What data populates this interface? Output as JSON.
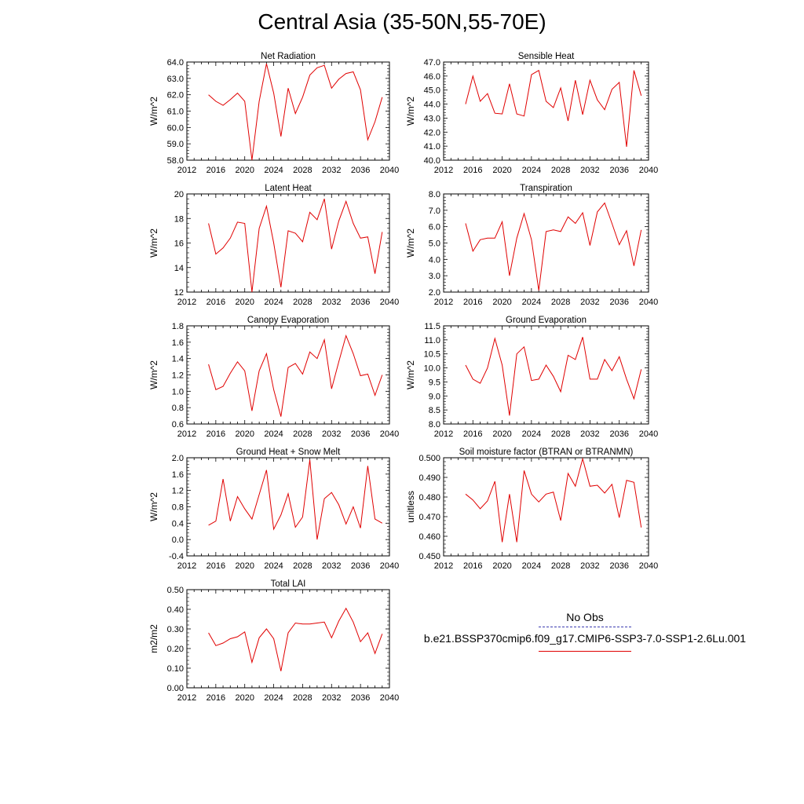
{
  "figure": {
    "title": "Central Asia (35-50N,55-70E)"
  },
  "legend": {
    "obs_label": "No Obs",
    "run_label": "b.e21.BSSP370cmip6.f09_g17.CMIP6-SSP3-7.0-SSP1-2.6Lu.001",
    "run_color": "#e00000",
    "obs_color": "#3c3cb0"
  },
  "line_color": "#e00000",
  "chart_data": [
    {
      "type": "line",
      "title": "Net Radiation",
      "ylabel": "W/m^2",
      "xlim": [
        2012,
        2040
      ],
      "ylim": [
        58.0,
        64.0
      ],
      "xticks": [
        "2012",
        "2016",
        "2020",
        "2024",
        "2028",
        "2032",
        "2036",
        "2040"
      ],
      "yticks": [
        "58.0",
        "59.0",
        "60.0",
        "61.0",
        "62.0",
        "63.0",
        "64.0"
      ],
      "x": [
        2015,
        2016,
        2017,
        2018,
        2019,
        2020,
        2021,
        2022,
        2023,
        2024,
        2025,
        2026,
        2027,
        2028,
        2029,
        2030,
        2031,
        2032,
        2033,
        2034,
        2035,
        2036,
        2037,
        2038,
        2039
      ],
      "series": [
        {
          "values": [
            62.0,
            61.6,
            61.35,
            61.7,
            62.1,
            61.6,
            58.0,
            61.6,
            63.9,
            62.1,
            59.45,
            62.4,
            60.85,
            61.85,
            63.2,
            63.65,
            63.8,
            62.4,
            62.95,
            63.3,
            63.4,
            62.3,
            59.25,
            60.35,
            61.85
          ]
        }
      ]
    },
    {
      "type": "line",
      "title": "Sensible Heat",
      "ylabel": "W/m^2",
      "xlim": [
        2012,
        2040
      ],
      "ylim": [
        40.0,
        47.0
      ],
      "xticks": [
        "2012",
        "2016",
        "2020",
        "2024",
        "2028",
        "2032",
        "2036",
        "2040"
      ],
      "yticks": [
        "40.0",
        "41.0",
        "42.0",
        "43.0",
        "44.0",
        "45.0",
        "46.0",
        "47.0"
      ],
      "x": [
        2015,
        2016,
        2017,
        2018,
        2019,
        2020,
        2021,
        2022,
        2023,
        2024,
        2025,
        2026,
        2027,
        2028,
        2029,
        2030,
        2031,
        2032,
        2033,
        2034,
        2035,
        2036,
        2037,
        2038,
        2039
      ],
      "series": [
        {
          "values": [
            44.0,
            46.0,
            44.2,
            44.75,
            43.35,
            43.3,
            45.45,
            43.3,
            43.15,
            46.1,
            46.4,
            44.2,
            43.75,
            45.15,
            42.8,
            45.7,
            43.25,
            45.7,
            44.3,
            43.6,
            45.05,
            45.55,
            40.95,
            46.4,
            44.6
          ]
        }
      ]
    },
    {
      "type": "line",
      "title": "Latent Heat",
      "ylabel": "W/m^2",
      "xlim": [
        2012,
        2040
      ],
      "ylim": [
        12,
        20
      ],
      "xticks": [
        "2012",
        "2016",
        "2020",
        "2024",
        "2028",
        "2032",
        "2036",
        "2040"
      ],
      "yticks": [
        "12",
        "14",
        "16",
        "18",
        "20"
      ],
      "x": [
        2015,
        2016,
        2017,
        2018,
        2019,
        2020,
        2021,
        2022,
        2023,
        2024,
        2025,
        2026,
        2027,
        2028,
        2029,
        2030,
        2031,
        2032,
        2033,
        2034,
        2035,
        2036,
        2037,
        2038,
        2039
      ],
      "series": [
        {
          "values": [
            17.6,
            15.1,
            15.6,
            16.4,
            17.7,
            17.6,
            12.0,
            17.2,
            19.0,
            16.0,
            12.4,
            17.0,
            16.8,
            16.1,
            18.5,
            17.9,
            19.6,
            15.5,
            17.8,
            19.4,
            17.6,
            16.4,
            16.5,
            13.5,
            16.9
          ]
        }
      ]
    },
    {
      "type": "line",
      "title": "Transpiration",
      "ylabel": "W/m^2",
      "xlim": [
        2012,
        2040
      ],
      "ylim": [
        2.0,
        8.0
      ],
      "xticks": [
        "2012",
        "2016",
        "2020",
        "2024",
        "2028",
        "2032",
        "2036",
        "2040"
      ],
      "yticks": [
        "2.0",
        "3.0",
        "4.0",
        "5.0",
        "6.0",
        "7.0",
        "8.0"
      ],
      "x": [
        2015,
        2016,
        2017,
        2018,
        2019,
        2020,
        2021,
        2022,
        2023,
        2024,
        2025,
        2026,
        2027,
        2028,
        2029,
        2030,
        2031,
        2032,
        2033,
        2034,
        2035,
        2036,
        2037,
        2038,
        2039
      ],
      "series": [
        {
          "values": [
            6.2,
            4.5,
            5.2,
            5.3,
            5.3,
            6.3,
            3.0,
            5.3,
            6.8,
            5.2,
            2.1,
            5.7,
            5.8,
            5.7,
            6.6,
            6.2,
            6.85,
            4.85,
            6.9,
            7.45,
            6.2,
            4.9,
            5.75,
            3.6,
            5.8
          ]
        }
      ]
    },
    {
      "type": "line",
      "title": "Canopy Evaporation",
      "ylabel": "W/m^2",
      "xlim": [
        2012,
        2040
      ],
      "ylim": [
        0.6,
        1.8
      ],
      "xticks": [
        "2012",
        "2016",
        "2020",
        "2024",
        "2028",
        "2032",
        "2036",
        "2040"
      ],
      "yticks": [
        "0.6",
        "0.8",
        "1.0",
        "1.2",
        "1.4",
        "1.6",
        "1.8"
      ],
      "x": [
        2015,
        2016,
        2017,
        2018,
        2019,
        2020,
        2021,
        2022,
        2023,
        2024,
        2025,
        2026,
        2027,
        2028,
        2029,
        2030,
        2031,
        2032,
        2033,
        2034,
        2035,
        2036,
        2037,
        2038,
        2039
      ],
      "series": [
        {
          "values": [
            1.33,
            1.02,
            1.06,
            1.22,
            1.36,
            1.25,
            0.76,
            1.25,
            1.46,
            1.02,
            0.69,
            1.29,
            1.34,
            1.21,
            1.48,
            1.4,
            1.63,
            1.03,
            1.36,
            1.68,
            1.46,
            1.19,
            1.21,
            0.95,
            1.2
          ]
        }
      ]
    },
    {
      "type": "line",
      "title": "Ground Evaporation",
      "ylabel": "W/m^2",
      "xlim": [
        2012,
        2040
      ],
      "ylim": [
        8.0,
        11.5
      ],
      "xticks": [
        "2012",
        "2016",
        "2020",
        "2024",
        "2028",
        "2032",
        "2036",
        "2040"
      ],
      "yticks": [
        "8.0",
        "8.5",
        "9.0",
        "9.5",
        "10.0",
        "10.5",
        "11.0",
        "11.5"
      ],
      "x": [
        2015,
        2016,
        2017,
        2018,
        2019,
        2020,
        2021,
        2022,
        2023,
        2024,
        2025,
        2026,
        2027,
        2028,
        2029,
        2030,
        2031,
        2032,
        2033,
        2034,
        2035,
        2036,
        2037,
        2038,
        2039
      ],
      "series": [
        {
          "values": [
            10.1,
            9.6,
            9.45,
            10.0,
            11.05,
            10.1,
            8.3,
            10.5,
            10.75,
            9.55,
            9.6,
            10.1,
            9.7,
            9.15,
            10.45,
            10.3,
            11.1,
            9.6,
            9.6,
            10.3,
            9.9,
            10.4,
            9.6,
            8.9,
            9.95
          ]
        }
      ]
    },
    {
      "type": "line",
      "title": "Ground Heat + Snow Melt",
      "ylabel": "W/m^2",
      "xlim": [
        2012,
        2040
      ],
      "ylim": [
        -0.4,
        2.0
      ],
      "xticks": [
        "2012",
        "2016",
        "2020",
        "2024",
        "2028",
        "2032",
        "2036",
        "2040"
      ],
      "yticks": [
        "-0.4",
        "0.0",
        "0.4",
        "0.8",
        "1.2",
        "1.6",
        "2.0"
      ],
      "x": [
        2015,
        2016,
        2017,
        2018,
        2019,
        2020,
        2021,
        2022,
        2023,
        2024,
        2025,
        2026,
        2027,
        2028,
        2029,
        2030,
        2031,
        2032,
        2033,
        2034,
        2035,
        2036,
        2037,
        2038,
        2039
      ],
      "series": [
        {
          "values": [
            0.35,
            0.45,
            1.48,
            0.45,
            1.05,
            0.75,
            0.5,
            1.1,
            1.7,
            0.25,
            0.6,
            1.12,
            0.3,
            0.55,
            1.95,
            0.0,
            1.0,
            1.15,
            0.85,
            0.38,
            0.8,
            0.28,
            1.8,
            0.5,
            0.4
          ]
        }
      ]
    },
    {
      "type": "line",
      "title": "Soil moisture factor (BTRAN or BTRANMN)",
      "ylabel": "unitless",
      "xlim": [
        2012,
        2040
      ],
      "ylim": [
        0.45,
        0.5
      ],
      "xticks": [
        "2012",
        "2016",
        "2020",
        "2024",
        "2028",
        "2032",
        "2036",
        "2040"
      ],
      "yticks": [
        "0.450",
        "0.460",
        "0.470",
        "0.480",
        "0.490",
        "0.500"
      ],
      "x": [
        2015,
        2016,
        2017,
        2018,
        2019,
        2020,
        2021,
        2022,
        2023,
        2024,
        2025,
        2026,
        2027,
        2028,
        2029,
        2030,
        2031,
        2032,
        2033,
        2034,
        2035,
        2036,
        2037,
        2038,
        2039
      ],
      "series": [
        {
          "values": [
            0.4815,
            0.4785,
            0.474,
            0.478,
            0.488,
            0.457,
            0.4815,
            0.457,
            0.4935,
            0.4815,
            0.4775,
            0.4815,
            0.4825,
            0.468,
            0.492,
            0.4855,
            0.4995,
            0.4855,
            0.486,
            0.482,
            0.4865,
            0.4695,
            0.4885,
            0.4875,
            0.4645
          ]
        }
      ]
    },
    {
      "type": "line",
      "title": "Total LAI",
      "ylabel": "m2/m2",
      "xlim": [
        2012,
        2040
      ],
      "ylim": [
        0.0,
        0.5
      ],
      "xticks": [
        "2012",
        "2016",
        "2020",
        "2024",
        "2028",
        "2032",
        "2036",
        "2040"
      ],
      "yticks": [
        "0.00",
        "0.10",
        "0.20",
        "0.30",
        "0.40",
        "0.50"
      ],
      "x": [
        2015,
        2016,
        2017,
        2018,
        2019,
        2020,
        2021,
        2022,
        2023,
        2024,
        2025,
        2026,
        2027,
        2028,
        2029,
        2030,
        2031,
        2032,
        2033,
        2034,
        2035,
        2036,
        2037,
        2038,
        2039
      ],
      "series": [
        {
          "values": [
            0.28,
            0.215,
            0.228,
            0.25,
            0.26,
            0.285,
            0.13,
            0.255,
            0.3,
            0.25,
            0.085,
            0.28,
            0.33,
            0.325,
            0.325,
            0.33,
            0.335,
            0.255,
            0.34,
            0.405,
            0.335,
            0.235,
            0.28,
            0.175,
            0.275
          ]
        }
      ]
    }
  ]
}
